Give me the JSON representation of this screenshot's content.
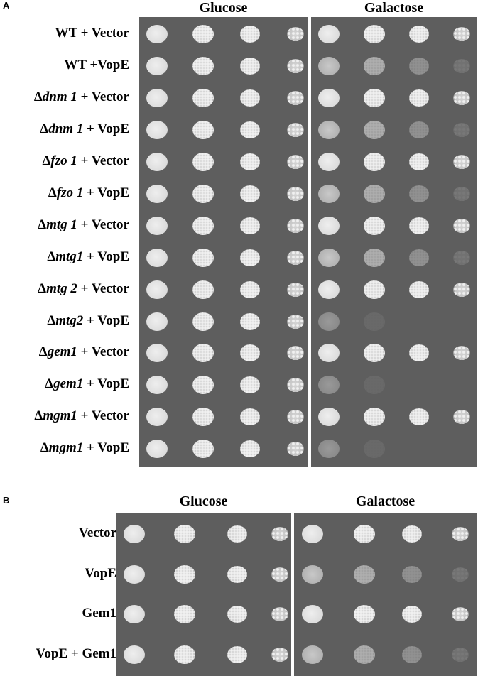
{
  "panels": [
    {
      "letter": "A",
      "conditions": [
        "Glucose",
        "Galactose"
      ],
      "rows": [
        {
          "prefix": "",
          "italic": "",
          "rest": "WT + Vector",
          "gal_growth": "full"
        },
        {
          "prefix": "",
          "italic": "",
          "rest": "WT +VopE",
          "gal_growth": "reduced"
        },
        {
          "prefix": "Δ",
          "italic": "dnm 1",
          "rest": " + Vector",
          "gal_growth": "full"
        },
        {
          "prefix": "Δ",
          "italic": "dnm 1",
          "rest": " + VopE",
          "gal_growth": "reduced"
        },
        {
          "prefix": "Δ",
          "italic": "fzo 1",
          "rest": " + Vector",
          "gal_growth": "full"
        },
        {
          "prefix": "Δ",
          "italic": "fzo 1",
          "rest": " + VopE",
          "gal_growth": "reduced"
        },
        {
          "prefix": "Δ",
          "italic": "mtg 1",
          "rest": " + Vector",
          "gal_growth": "full"
        },
        {
          "prefix": "Δ",
          "italic": "mtg1",
          "rest": " + VopE",
          "gal_growth": "reduced"
        },
        {
          "prefix": "Δ",
          "italic": "mtg 2",
          "rest": " + Vector",
          "gal_growth": "full"
        },
        {
          "prefix": "Δ",
          "italic": "mtg2",
          "rest": " + VopE",
          "gal_growth": "none"
        },
        {
          "prefix": "Δ",
          "italic": "gem1",
          "rest": " + Vector",
          "gal_growth": "full"
        },
        {
          "prefix": "Δ",
          "italic": "gem1",
          "rest": " + VopE",
          "gal_growth": "none"
        },
        {
          "prefix": "Δ",
          "italic": "mgm1",
          "rest": " + Vector",
          "gal_growth": "full"
        },
        {
          "prefix": "Δ",
          "italic": "mgm1",
          "rest": " + VopE",
          "gal_growth": "none"
        }
      ]
    },
    {
      "letter": "B",
      "conditions": [
        "Glucose",
        "Galactose"
      ],
      "rows": [
        {
          "prefix": "",
          "italic": "",
          "rest": "Vector",
          "gal_growth": "full"
        },
        {
          "prefix": "",
          "italic": "",
          "rest": "VopE",
          "gal_growth": "reduced"
        },
        {
          "prefix": "",
          "italic": "",
          "rest": "Gem1",
          "gal_growth": "full"
        },
        {
          "prefix": "",
          "italic": "",
          "rest": "VopE + Gem1",
          "gal_growth": "reduced"
        }
      ]
    }
  ],
  "colors": {
    "plate": "#5e5e5e",
    "colony": "#e4e4e4"
  }
}
